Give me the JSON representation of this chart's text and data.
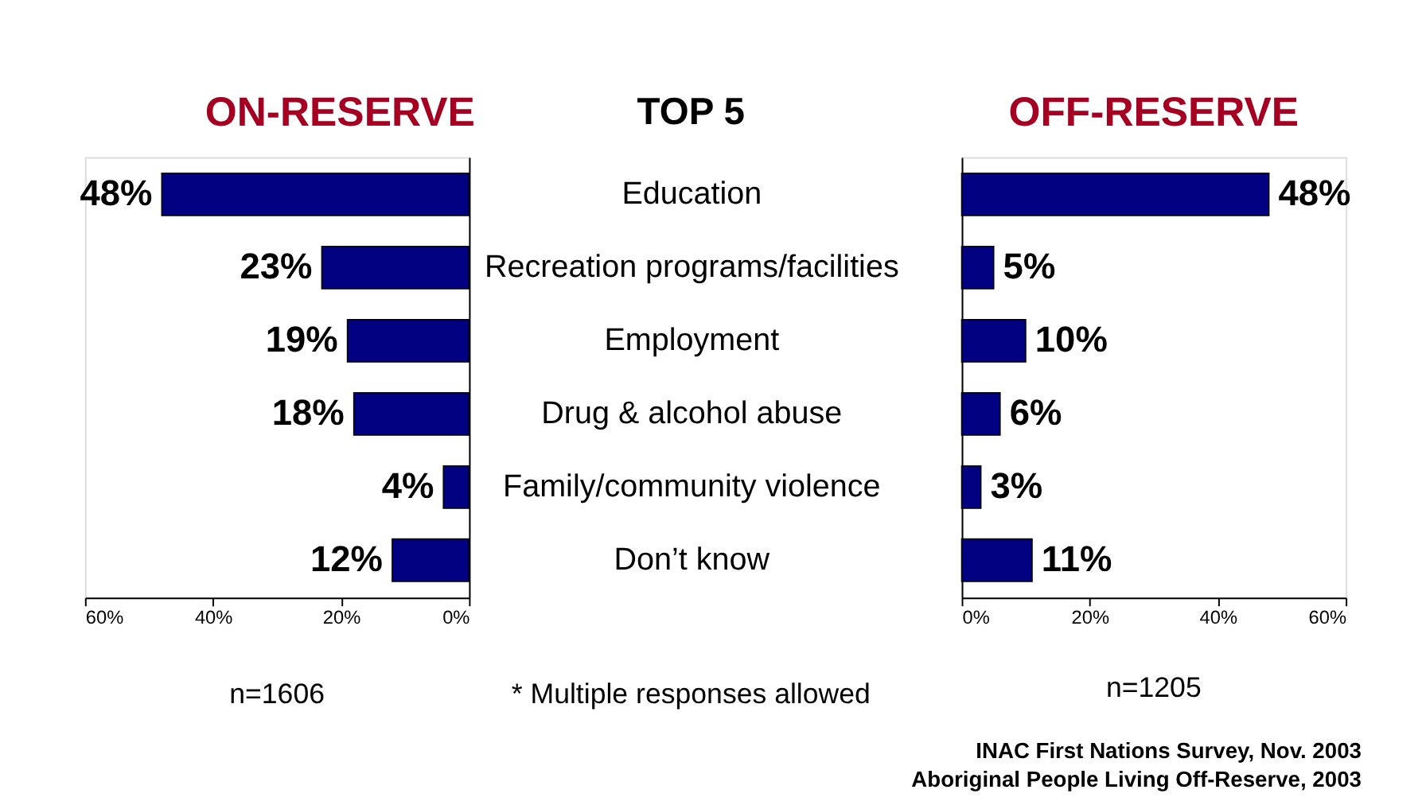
{
  "chart_data": [
    {
      "type": "bar",
      "orientation": "horizontal",
      "title": "ON-RESERVE",
      "categories": [
        "Education",
        "Recreation programs/facilities",
        "Employment",
        "Drug & alcohol abuse",
        "Family/community violence",
        "Don’t know"
      ],
      "values": [
        48,
        23,
        19,
        18,
        4,
        12
      ],
      "value_labels": [
        "48%",
        "23%",
        "19%",
        "18%",
        "4%",
        "12%"
      ],
      "color": "#000080",
      "xlim": [
        60,
        0
      ],
      "xticks": [
        {
          "value": 60,
          "label": "60%"
        },
        {
          "value": 40,
          "label": "40%"
        },
        {
          "value": 20,
          "label": "20%"
        },
        {
          "value": 0,
          "label": "0%"
        }
      ],
      "annotations": [
        "TOP 5",
        "n=1606",
        "* Multiple responses allowed"
      ]
    },
    {
      "type": "bar",
      "orientation": "horizontal",
      "title": "OFF-RESERVE",
      "categories": [
        null,
        null,
        null,
        null,
        null,
        null
      ],
      "values": [
        48,
        5,
        10,
        6,
        3,
        11
      ],
      "value_labels": [
        "48%",
        "5%",
        "10%",
        "6%",
        "3%",
        "11%"
      ],
      "color": "#000080",
      "xlim": [
        0,
        60
      ],
      "xticks": [
        {
          "value": 0,
          "label": "0%"
        },
        {
          "value": 20,
          "label": "20%"
        },
        {
          "value": 40,
          "label": "40%"
        },
        {
          "value": 60,
          "label": "60%"
        }
      ],
      "tick_labels": "x",
      "annotations": [
        "n=1205",
        "INAC First Nations Survey, Nov. 2003",
        "Aboriginal People Living Off-Reserve, 2003"
      ]
    }
  ]
}
